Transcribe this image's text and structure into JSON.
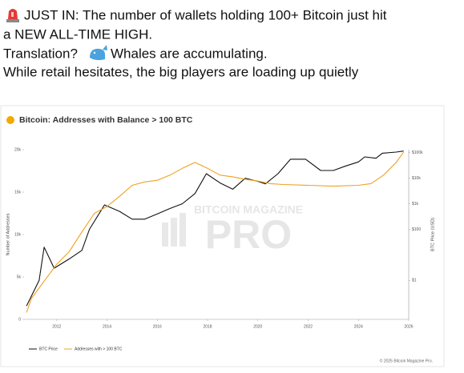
{
  "post": {
    "line1": "JUST IN: The number of wallets holding 100+ Bitcoin just hit",
    "line2": "a NEW ALL-TIME HIGH.",
    "line3a": "Translation?",
    "line3b": "Whales are accumulating.",
    "line4": "While retail hesitates, the big players are loading up quietly"
  },
  "chart_data": {
    "type": "line",
    "title": "Bitcoin: Addresses with Balance > 100 BTC",
    "y_label": "Number of Addresses",
    "y2_label": "BTC Price (USD)",
    "watermark": [
      "BITCOIN MAGAZINE",
      "PRO"
    ],
    "copyright": "© 2025 Bitcoin Magazine Pro.",
    "xlim": [
      2010.7,
      2026
    ],
    "xticks": [
      2012,
      2014,
      2016,
      2018,
      2020,
      2022,
      2024,
      2026
    ],
    "ylim": [
      0,
      20000
    ],
    "yticks": [
      0,
      {
        "value": 5000,
        "label": "5k"
      },
      {
        "value": 10000,
        "label": "10k"
      },
      {
        "value": 15000,
        "label": "15k"
      },
      {
        "value": 20000,
        "label": "20k"
      }
    ],
    "y2lim": [
      0.03,
      130000
    ],
    "y2log": true,
    "y2ticks": [
      {
        "value": 1,
        "label": "$1"
      },
      {
        "value": 100,
        "label": "$100"
      },
      {
        "value": 1000,
        "label": "$1k"
      },
      {
        "value": 10000,
        "label": "$10k"
      },
      {
        "value": 100000,
        "label": "$100k"
      }
    ],
    "series": [
      {
        "name": "BTC Price",
        "color": "#111111",
        "axis": "y2",
        "x": [
          2010.8,
          2011.3,
          2011.5,
          2011.9,
          2012.5,
          2013,
          2013.3,
          2013.9,
          2014.5,
          2015,
          2015.5,
          2016,
          2016.5,
          2017,
          2017.5,
          2017.95,
          2018.5,
          2019,
          2019.5,
          2020,
          2020.3,
          2020.8,
          2021.3,
          2021.9,
          2022.5,
          2023,
          2023.5,
          2024,
          2024.25,
          2024.7,
          2024.95,
          2025.5,
          2025.8
        ],
        "values": [
          0.1,
          1,
          20,
          3,
          7,
          15,
          100,
          900,
          500,
          250,
          250,
          400,
          650,
          1000,
          2500,
          15000,
          6500,
          3700,
          10000,
          7500,
          6000,
          15000,
          55000,
          55000,
          20000,
          20000,
          30000,
          43000,
          68000,
          60000,
          95000,
          105000,
          115000
        ]
      },
      {
        "name": "Addresses with > 100 BTC",
        "color": "#f0a020",
        "axis": "y",
        "x": [
          2010.8,
          2011,
          2011.5,
          2012,
          2012.5,
          2013,
          2013.5,
          2014,
          2014.5,
          2015,
          2015.5,
          2016,
          2016.5,
          2017,
          2017.5,
          2018,
          2018.5,
          2019,
          2019.5,
          2020,
          2020.5,
          2021,
          2022,
          2023,
          2024,
          2024.5,
          2025,
          2025.5,
          2025.8
        ],
        "values": [
          800,
          2500,
          4500,
          6500,
          8000,
          10300,
          12500,
          13300,
          14500,
          15800,
          16200,
          16400,
          17000,
          17800,
          18500,
          17800,
          17000,
          16800,
          16500,
          16300,
          16000,
          15900,
          15800,
          15700,
          15800,
          16000,
          17000,
          18500,
          19700
        ]
      }
    ]
  }
}
